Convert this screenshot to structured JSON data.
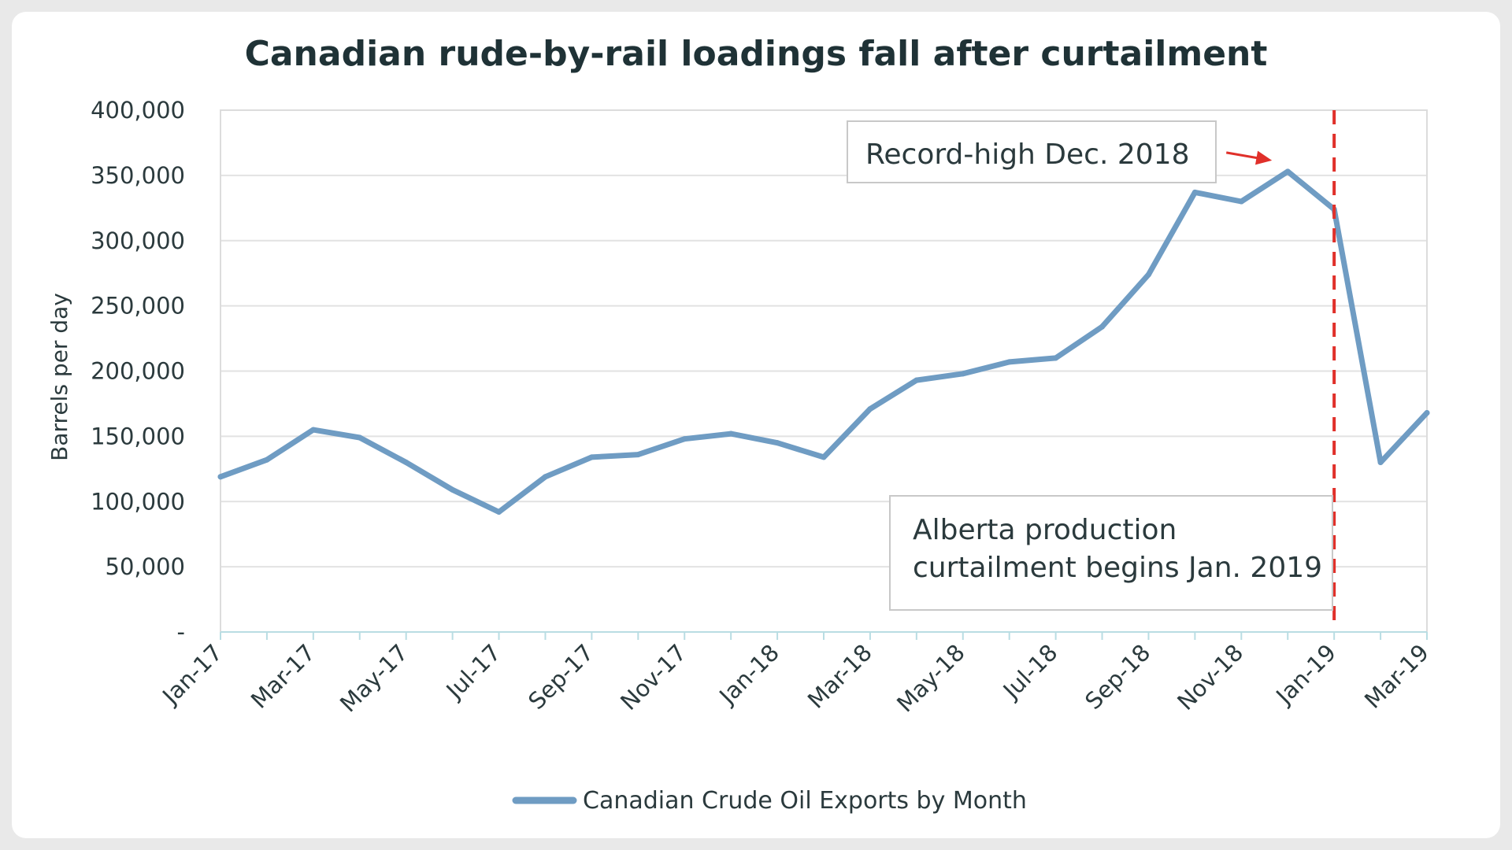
{
  "chart_data": {
    "type": "line",
    "title": "Canadian rude-by-rail loadings fall after curtailment",
    "xlabel": "",
    "ylabel": "Barrels per day",
    "categories": [
      "Jan-17",
      "Feb-17",
      "Mar-17",
      "Apr-17",
      "May-17",
      "Jun-17",
      "Jul-17",
      "Aug-17",
      "Sep-17",
      "Oct-17",
      "Nov-17",
      "Dec-17",
      "Jan-18",
      "Feb-18",
      "Mar-18",
      "Apr-18",
      "May-18",
      "Jun-18",
      "Jul-18",
      "Aug-18",
      "Sep-18",
      "Oct-18",
      "Nov-18",
      "Dec-18",
      "Jan-19",
      "Feb-19",
      "Mar-19"
    ],
    "x_tick_labels": [
      "Jan-17",
      "Mar-17",
      "May-17",
      "Jul-17",
      "Sep-17",
      "Nov-17",
      "Jan-18",
      "Mar-18",
      "May-18",
      "Jul-18",
      "Sep-18",
      "Nov-18",
      "Jan-19",
      "Mar-19"
    ],
    "y_tick_labels": [
      "-",
      "50,000",
      "100,000",
      "150,000",
      "200,000",
      "250,000",
      "300,000",
      "350,000",
      "400,000"
    ],
    "ylim": [
      0,
      400000
    ],
    "y_step": 50000,
    "grid": true,
    "legend_position": "bottom",
    "series": [
      {
        "name": "Canadian Crude Oil Exports by Month",
        "color": "#6f9cc3",
        "values": [
          119000,
          132000,
          155000,
          149000,
          130000,
          109000,
          92000,
          119000,
          134000,
          136000,
          148000,
          152000,
          145000,
          134000,
          171000,
          193000,
          198000,
          207000,
          210000,
          234000,
          274000,
          337000,
          330000,
          353000,
          324000,
          130000,
          168000
        ]
      }
    ],
    "annotations": [
      {
        "text": "Record-high Dec. 2018",
        "points_to": "Dec-18",
        "arrow_color": "#e0302a"
      },
      {
        "text_lines": [
          "Alberta production",
          "curtailment begins Jan. 2019"
        ],
        "marker": "Jan-19",
        "line_color": "#e0302a",
        "line_style": "dashed"
      }
    ]
  }
}
